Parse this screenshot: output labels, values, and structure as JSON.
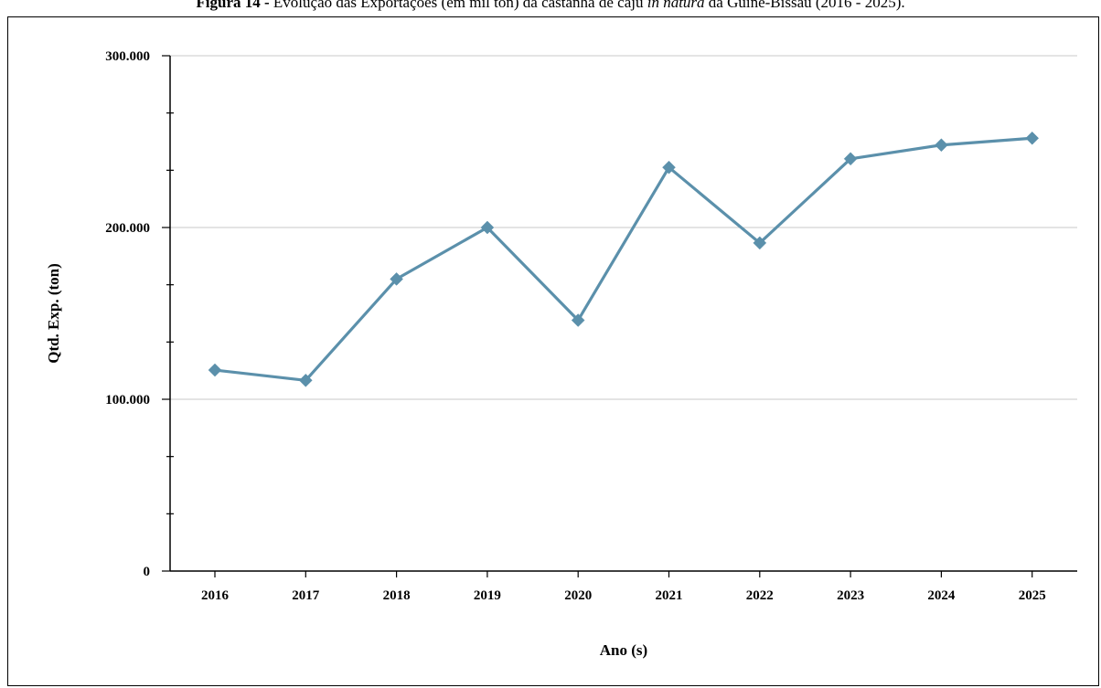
{
  "figure": {
    "title_label": "Figura 14 -",
    "title_text_1": " Evolução das Exportações (em mil ton) da castanha de caju ",
    "title_italic": "in natura",
    "title_text_2": " da Guiné-Bissau (2016 - 2025)."
  },
  "chart_data": {
    "type": "line",
    "xlabel": "Ano (s)",
    "ylabel": "Qtd. Exp. (ton)",
    "ylim": [
      0,
      300000
    ],
    "y_major_ticks": [
      0,
      100000,
      200000,
      300000
    ],
    "y_tick_labels": [
      "0",
      "100.000",
      "200.000",
      "300.000"
    ],
    "y_minor_step": 33333.33,
    "grid": "horizontal major lines",
    "categories": [
      "2016",
      "2017",
      "2018",
      "2019",
      "2020",
      "2021",
      "2022",
      "2023",
      "2024",
      "2025"
    ],
    "series": [
      {
        "values": [
          117000,
          111000,
          170000,
          200000,
          146000,
          235000,
          191000,
          240000,
          248000,
          252000
        ],
        "color": "#5b90ab",
        "marker": "diamond"
      }
    ]
  }
}
